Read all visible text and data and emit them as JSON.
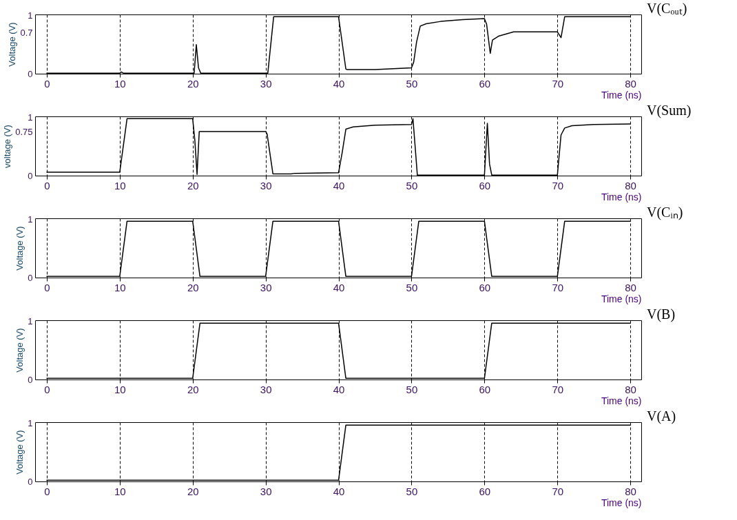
{
  "chart_data": [
    {
      "type": "line",
      "title": "V(Cₒᵤₜ)",
      "xlabel": "Time (ns)",
      "ylabel": "Voltage (V)",
      "grid": "x",
      "xlim": [
        -1.6,
        81.5
      ],
      "ylim": [
        0,
        1.02
      ],
      "xticks": [
        0,
        10,
        20,
        30,
        40,
        50,
        60,
        70,
        80
      ],
      "yticks": [
        0,
        0.7,
        1
      ],
      "series": [
        {
          "color": "#000000",
          "x": [
            0,
            10,
            10.2,
            10.5,
            20.2,
            20.5,
            20.8,
            21.1,
            30.3,
            31.1,
            40,
            41,
            41.2,
            45,
            50,
            50.3,
            50.7,
            51.2,
            52,
            54,
            57,
            60,
            60.3,
            60.8,
            61.1,
            62,
            64,
            70,
            70.5,
            71,
            80
          ],
          "values": [
            0.01,
            0.01,
            0.03,
            0.01,
            0.01,
            0.5,
            0.1,
            0.01,
            0.01,
            0.98,
            0.98,
            0.08,
            0.07,
            0.07,
            0.1,
            0.2,
            0.55,
            0.82,
            0.86,
            0.9,
            0.93,
            0.95,
            0.85,
            0.35,
            0.58,
            0.65,
            0.72,
            0.72,
            0.62,
            0.98,
            0.98
          ]
        }
      ]
    },
    {
      "type": "line",
      "title": "V(Sum)",
      "xlabel": "Time (ns)",
      "ylabel": "voltage (V)",
      "grid": "x",
      "xlim": [
        -1.6,
        81.5
      ],
      "ylim": [
        0,
        1.02
      ],
      "xticks": [
        0,
        10,
        20,
        30,
        40,
        50,
        60,
        70,
        80
      ],
      "yticks": [
        0,
        0.75,
        1
      ],
      "series": [
        {
          "color": "#000000",
          "x": [
            0,
            10,
            11,
            20,
            20.3,
            20.6,
            20.9,
            30,
            30.2,
            31,
            33.5,
            34,
            40,
            40.5,
            41,
            42,
            45,
            50,
            50.2,
            50.5,
            50.8,
            60,
            60.4,
            60.7,
            61,
            70,
            70.5,
            71,
            72,
            75,
            80
          ],
          "values": [
            0.06,
            0.06,
            0.98,
            0.98,
            0.6,
            0.02,
            0.76,
            0.76,
            0.72,
            0.03,
            0.03,
            0.04,
            0.05,
            0.4,
            0.8,
            0.84,
            0.87,
            0.88,
            0.98,
            0.5,
            0.01,
            0.01,
            0.9,
            0.2,
            0.01,
            0.01,
            0.7,
            0.82,
            0.86,
            0.88,
            0.89
          ]
        }
      ]
    },
    {
      "type": "line",
      "title": "V(Cᵢₙ)",
      "xlabel": "Time (ns)",
      "ylabel": "Voltage (V)",
      "grid": "x",
      "xlim": [
        -1.6,
        81.5
      ],
      "ylim": [
        0,
        1.02
      ],
      "xticks": [
        0,
        10,
        20,
        30,
        40,
        50,
        60,
        70,
        80
      ],
      "yticks": [
        0,
        1
      ],
      "series": [
        {
          "color": "#000000",
          "x": [
            0,
            10,
            11,
            20,
            21,
            30,
            31,
            40,
            41,
            50,
            51,
            60,
            61,
            70,
            71,
            80
          ],
          "values": [
            0.02,
            0.02,
            0.97,
            0.97,
            0.02,
            0.02,
            0.97,
            0.97,
            0.02,
            0.02,
            0.97,
            0.97,
            0.02,
            0.02,
            0.97,
            0.97
          ]
        }
      ]
    },
    {
      "type": "line",
      "title": "V(B)",
      "xlabel": "Time (ns)",
      "ylabel": "Voltage (V)",
      "grid": "x",
      "xlim": [
        -1.6,
        81.5
      ],
      "ylim": [
        0,
        1.02
      ],
      "xticks": [
        0,
        10,
        20,
        30,
        40,
        50,
        60,
        70,
        80
      ],
      "yticks": [
        0,
        1
      ],
      "series": [
        {
          "color": "#000000",
          "x": [
            0,
            20,
            21,
            40,
            41,
            60,
            61,
            80
          ],
          "values": [
            0.02,
            0.02,
            0.97,
            0.97,
            0.02,
            0.02,
            0.97,
            0.97
          ]
        }
      ]
    },
    {
      "type": "line",
      "title": "V(A)",
      "xlabel": "Time (ns)",
      "ylabel": "Voltage (V)",
      "grid": "x",
      "xlim": [
        -1.6,
        81.5
      ],
      "ylim": [
        0,
        1.02
      ],
      "xticks": [
        0,
        10,
        20,
        30,
        40,
        50,
        60,
        70,
        80
      ],
      "yticks": [
        0,
        1
      ],
      "series": [
        {
          "color": "#000000",
          "x": [
            0,
            40,
            41,
            80
          ],
          "values": [
            0.02,
            0.02,
            0.97,
            0.97
          ]
        }
      ]
    }
  ]
}
